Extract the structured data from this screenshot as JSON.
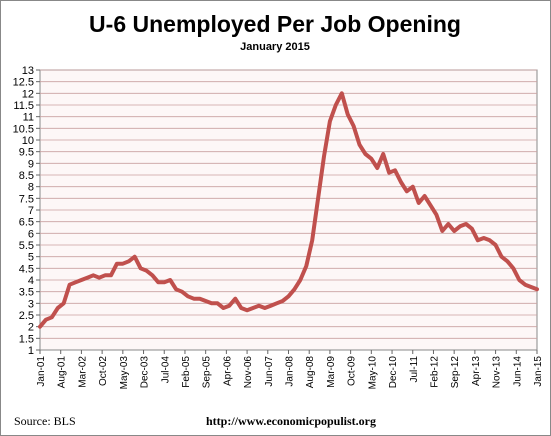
{
  "chart_data": {
    "type": "line",
    "title": "U-6 Unemployed Per Job Opening",
    "subtitle": "January 2015",
    "source_label": "Source:  BLS",
    "url_label": "http://www.economicpopulist.org",
    "line_color": "#c0504d",
    "plot_bg": "#fdf7f7",
    "grid_color": "#c9a0a0",
    "grid": true,
    "ylim": [
      1,
      13
    ],
    "yticks": [
      "1",
      "1.5",
      "2",
      "2.5",
      "3",
      "3.5",
      "4",
      "4.5",
      "5",
      "5.5",
      "6",
      "6.5",
      "7",
      "7.5",
      "8",
      "8.5",
      "9",
      "9.5",
      "10",
      "10.5",
      "11",
      "11.5",
      "12",
      "12.5",
      "13"
    ],
    "xtick_labels": [
      "Jan-01",
      "Aug-01",
      "Mar-02",
      "Oct-02",
      "May-03",
      "Dec-03",
      "Jul-04",
      "Feb-05",
      "Sep-05",
      "Apr-06",
      "Nov-06",
      "Jun-07",
      "Jan-08",
      "Aug-08",
      "Mar-09",
      "Oct-09",
      "May-10",
      "Dec-10",
      "Jul-11",
      "Feb-12",
      "Sep-12",
      "Apr-13",
      "Nov-13",
      "Jun-14",
      "Jan-15"
    ],
    "x_start": "2001-01",
    "x_end": "2015-01",
    "series": [
      {
        "x": [
          "2001-01",
          "2001-03",
          "2001-05",
          "2001-07",
          "2001-09",
          "2001-11",
          "2002-01",
          "2002-03",
          "2002-05",
          "2002-07",
          "2002-09",
          "2002-11",
          "2003-01",
          "2003-03",
          "2003-05",
          "2003-07",
          "2003-09",
          "2003-11",
          "2004-01",
          "2004-03",
          "2004-05",
          "2004-07",
          "2004-09",
          "2004-11",
          "2005-01",
          "2005-03",
          "2005-05",
          "2005-07",
          "2005-09",
          "2005-11",
          "2006-01",
          "2006-03",
          "2006-05",
          "2006-07",
          "2006-09",
          "2006-11",
          "2007-01",
          "2007-03",
          "2007-05",
          "2007-07",
          "2007-09",
          "2007-11",
          "2008-01",
          "2008-03",
          "2008-05",
          "2008-07",
          "2008-09",
          "2008-11",
          "2009-01",
          "2009-03",
          "2009-05",
          "2009-07",
          "2009-09",
          "2009-11",
          "2010-01",
          "2010-03",
          "2010-05",
          "2010-07",
          "2010-09",
          "2010-11",
          "2011-01",
          "2011-03",
          "2011-05",
          "2011-07",
          "2011-09",
          "2011-11",
          "2012-01",
          "2012-03",
          "2012-05",
          "2012-07",
          "2012-09",
          "2012-11",
          "2013-01",
          "2013-03",
          "2013-05",
          "2013-07",
          "2013-09",
          "2013-11",
          "2014-01",
          "2014-03",
          "2014-05",
          "2014-07",
          "2014-09",
          "2014-11",
          "2015-01"
        ],
        "y": [
          2.0,
          2.3,
          2.4,
          2.8,
          3.0,
          3.8,
          3.9,
          4.0,
          4.1,
          4.2,
          4.1,
          4.2,
          4.2,
          4.7,
          4.7,
          4.8,
          5.0,
          4.5,
          4.4,
          4.2,
          3.9,
          3.9,
          4.0,
          3.6,
          3.5,
          3.3,
          3.2,
          3.2,
          3.1,
          3.0,
          3.0,
          2.8,
          2.9,
          3.2,
          2.8,
          2.7,
          2.8,
          2.9,
          2.8,
          2.9,
          3.0,
          3.1,
          3.3,
          3.6,
          4.0,
          4.6,
          5.7,
          7.5,
          9.3,
          10.8,
          11.5,
          12.0,
          11.1,
          10.6,
          9.8,
          9.4,
          9.2,
          8.8,
          9.4,
          8.6,
          8.7,
          8.2,
          7.8,
          8.0,
          7.3,
          7.6,
          7.2,
          6.8,
          6.1,
          6.4,
          6.1,
          6.3,
          6.4,
          6.2,
          5.7,
          5.8,
          5.7,
          5.5,
          5.0,
          4.8,
          4.5,
          4.0,
          3.8,
          3.7,
          3.6
        ]
      }
    ]
  }
}
